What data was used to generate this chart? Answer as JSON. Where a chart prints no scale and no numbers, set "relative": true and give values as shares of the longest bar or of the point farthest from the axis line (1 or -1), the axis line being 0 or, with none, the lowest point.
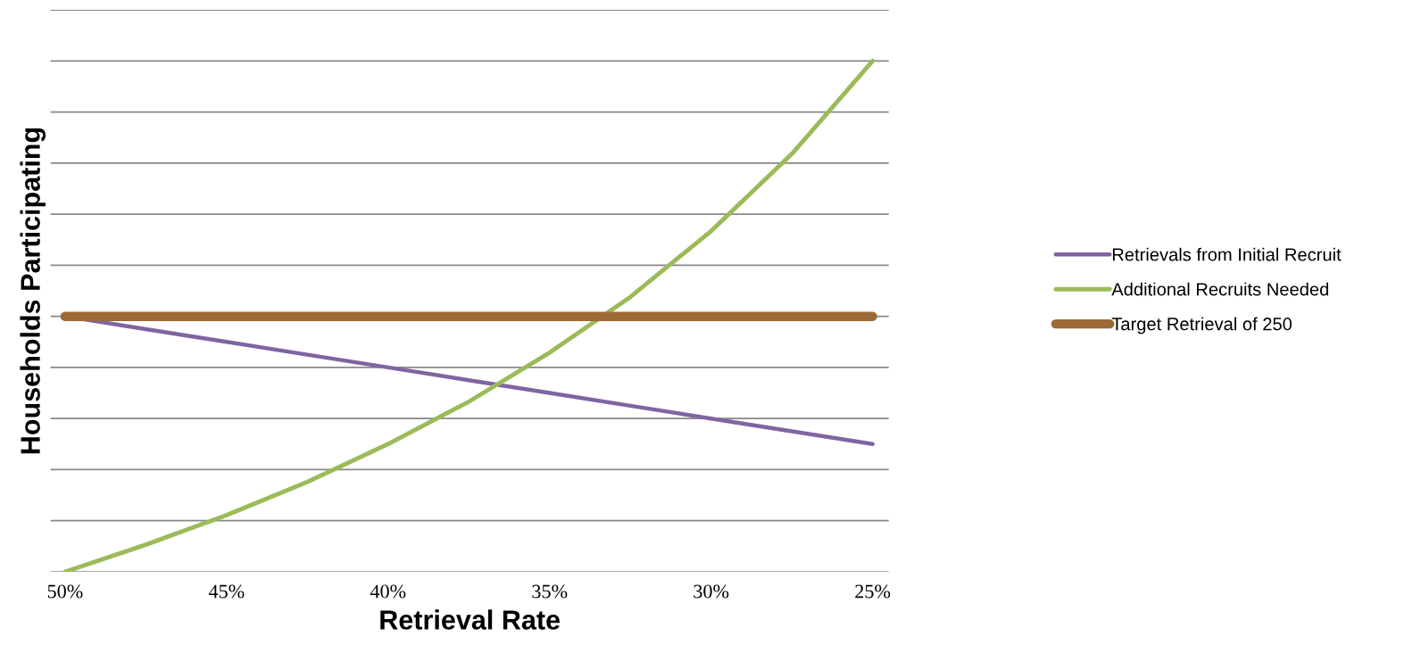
{
  "chart_data": {
    "type": "line",
    "xlabel": "Retrieval Rate",
    "ylabel": "Households Participating",
    "relative": true,
    "x": [
      50,
      47.5,
      45,
      42.5,
      40,
      37.5,
      35,
      32.5,
      30,
      27.5,
      25
    ],
    "xlim": [
      50.45,
      24.5
    ],
    "xticks": [
      {
        "value": 50,
        "label": "50%"
      },
      {
        "value": 45,
        "label": "45%"
      },
      {
        "value": 40,
        "label": "40%"
      },
      {
        "value": 35,
        "label": "35%"
      },
      {
        "value": 30,
        "label": "30%"
      },
      {
        "value": 25,
        "label": "25%"
      }
    ],
    "series": [
      {
        "name": "Retrievals from Initial Recruit",
        "color": "#8064a2",
        "values": [
          0.5,
          0.475,
          0.45,
          0.425,
          0.4,
          0.375,
          0.35,
          0.325,
          0.3,
          0.275,
          0.25
        ]
      },
      {
        "name": "Additional Recruits Needed",
        "color": "#9bbb59",
        "values": [
          0,
          0.053,
          0.111,
          0.176,
          0.25,
          0.333,
          0.429,
          0.538,
          0.667,
          0.818,
          1
        ]
      },
      {
        "name": "Target Retrieval of 250",
        "color": "#9c6a36",
        "values": [
          0.5,
          0.5,
          0.5,
          0.5,
          0.5,
          0.5,
          0.5,
          0.5,
          0.5,
          0.5,
          0.5
        ]
      }
    ],
    "grid": "y",
    "legend": "right",
    "marker": "none",
    "line_style": "solid"
  }
}
